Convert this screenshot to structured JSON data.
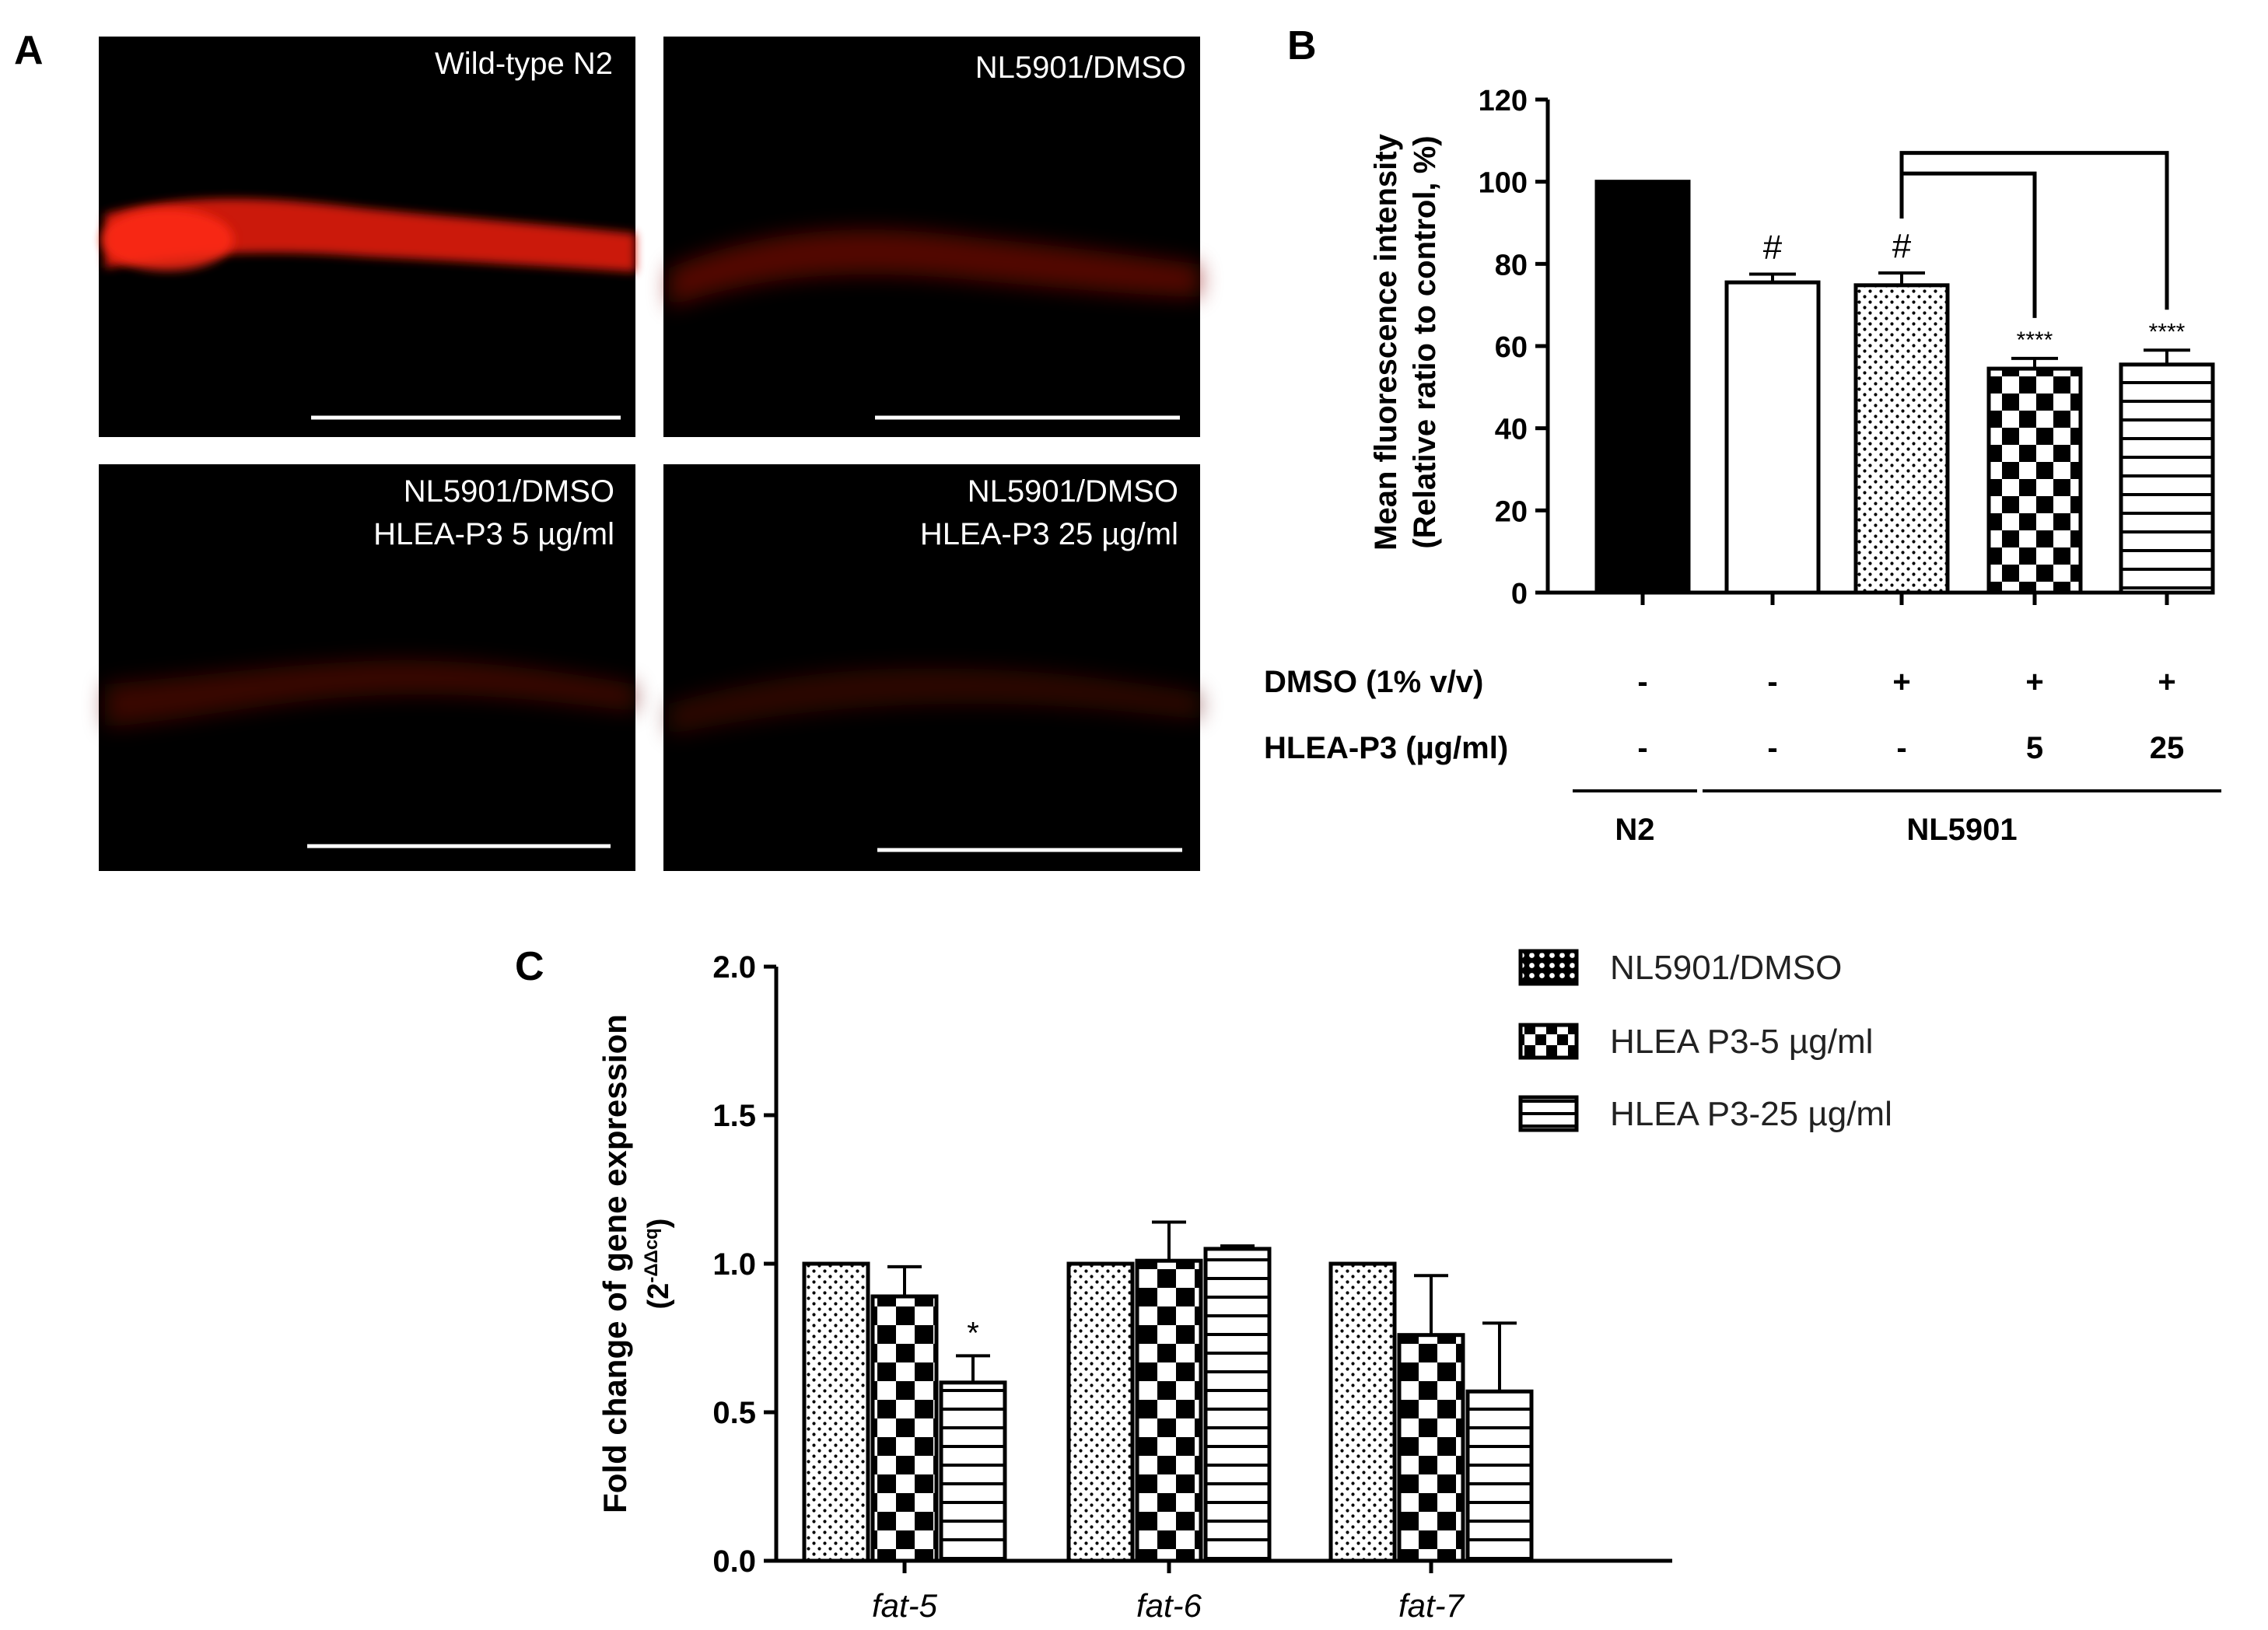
{
  "panel_letters": {
    "a": "A",
    "b": "B",
    "c": "C"
  },
  "micrographs": [
    {
      "line1": "Wild-type N2",
      "line2": "",
      "signal": "strong"
    },
    {
      "line1": "NL5901/DMSO",
      "line2": "",
      "signal": "weak"
    },
    {
      "line1": "NL5901/DMSO",
      "line2": "HLEA-P3 5 µg/ml",
      "signal": "faint"
    },
    {
      "line1": "NL5901/DMSO",
      "line2": "HLEA-P3 25 µg/ml",
      "signal": "faint"
    }
  ],
  "chart_data": [
    {
      "id": "B",
      "type": "bar",
      "ylabel": "Mean fluorescence intensity",
      "ylabel2": "(Relative ratio to control, %)",
      "ylim": [
        0,
        120
      ],
      "yticks": [
        0,
        20,
        40,
        60,
        80,
        100,
        120
      ],
      "yticks_text": [
        "0",
        "20",
        "40",
        "60",
        "80",
        "100",
        "120"
      ],
      "bars": [
        {
          "value": 100,
          "error": 0,
          "fill": "solid",
          "label": ""
        },
        {
          "value": 75.5,
          "error": 2,
          "fill": "white",
          "label": "#"
        },
        {
          "value": 74.8,
          "error": 3,
          "fill": "dots",
          "label": "#"
        },
        {
          "value": 54.5,
          "error": 2.5,
          "fill": "checker",
          "label": "****"
        },
        {
          "value": 55.5,
          "error": 3.5,
          "fill": "hstripes",
          "label": "****"
        }
      ],
      "significance_brackets": [
        {
          "from": 2,
          "to": 3
        },
        {
          "from": 2,
          "to": 4
        }
      ],
      "treatment_table": {
        "rows": [
          {
            "label": "DMSO (1% v/v)",
            "values": [
              "-",
              "-",
              "+",
              "+",
              "+"
            ]
          },
          {
            "label": "HLEA-P3 (µg/ml)",
            "values": [
              "-",
              "-",
              "-",
              "5",
              "25"
            ]
          }
        ],
        "groups": [
          {
            "label": "N2",
            "bars": [
              0,
              0
            ]
          },
          {
            "label": "NL5901",
            "bars": [
              1,
              4
            ]
          }
        ]
      }
    },
    {
      "id": "C",
      "type": "bar",
      "ylabel": "Fold change of gene expression",
      "ylabel2_base": "(2",
      "ylabel2_sup": "-ΔΔcq",
      "ylabel2_end": ")",
      "ylim": [
        0,
        2.0
      ],
      "yticks": [
        0,
        0.5,
        1.0,
        1.5,
        2.0
      ],
      "yticks_text": [
        "0.0",
        "0.5",
        "1.0",
        "1.5",
        "2.0"
      ],
      "categories": [
        "fat-5",
        "fat-6",
        "fat-7"
      ],
      "series": [
        {
          "name": "NL5901/DMSO",
          "fill": "dots",
          "values": [
            1.0,
            1.0,
            1.0
          ],
          "errors": [
            0,
            0,
            0
          ]
        },
        {
          "name": "HLEA P3-5 µg/ml",
          "fill": "checker",
          "values": [
            0.89,
            1.01,
            0.76
          ],
          "errors": [
            0.1,
            0.13,
            0.2
          ]
        },
        {
          "name": "HLEA P3-25 µg/ml",
          "fill": "hstripes",
          "values": [
            0.6,
            1.05,
            0.57
          ],
          "errors": [
            0.09,
            0.01,
            0.23
          ]
        }
      ],
      "annotations": [
        {
          "category": 0,
          "series": 2,
          "text": "*"
        }
      ]
    }
  ]
}
